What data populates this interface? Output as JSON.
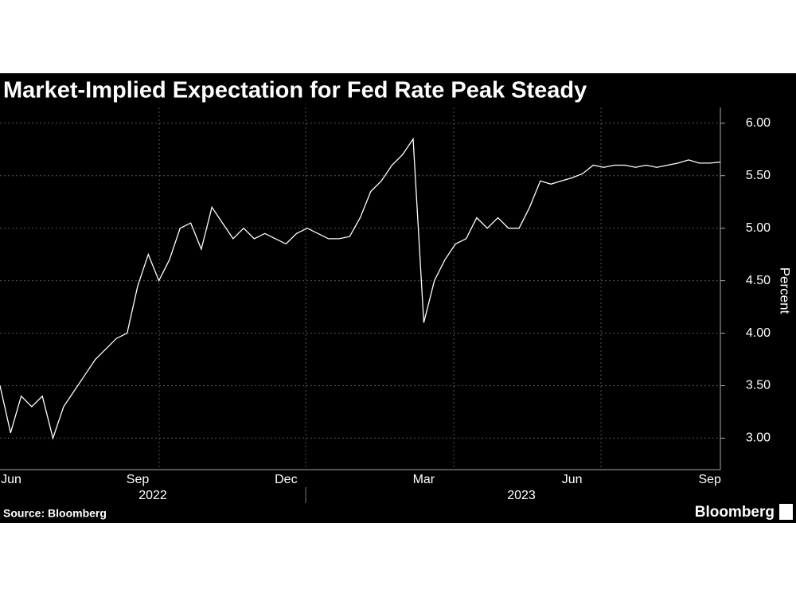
{
  "chart_data": {
    "type": "line",
    "title": "Market-Implied Expectation for Fed Rate Peak Steady",
    "y_label": "Percent",
    "source": "Source: Bloomberg",
    "brand": "Bloomberg",
    "years": [
      "2022",
      "2023"
    ],
    "categories": [
      null,
      "Jun",
      null,
      null,
      null,
      null,
      null,
      null,
      null,
      null,
      null,
      null,
      null,
      "Sep",
      null,
      null,
      null,
      null,
      null,
      null,
      null,
      null,
      null,
      null,
      null,
      null,
      null,
      "Dec",
      null,
      null,
      null,
      null,
      null,
      null,
      null,
      null,
      null,
      null,
      null,
      null,
      "Mar",
      null,
      null,
      null,
      null,
      null,
      null,
      null,
      null,
      null,
      null,
      null,
      null,
      null,
      "Jun",
      null,
      null,
      null,
      null,
      null,
      null,
      null,
      null,
      null,
      null,
      null,
      null,
      "Sep",
      null
    ],
    "series": [
      {
        "name": "Fed rate peak",
        "color": "#ffffff",
        "values": [
          3.5,
          3.05,
          3.4,
          3.3,
          3.4,
          3.0,
          3.3,
          3.45,
          3.6,
          3.75,
          3.85,
          3.95,
          4.0,
          4.45,
          4.75,
          4.5,
          4.7,
          5.0,
          5.05,
          4.8,
          5.2,
          5.05,
          4.9,
          5.0,
          4.9,
          4.95,
          4.9,
          4.85,
          4.95,
          5.0,
          4.95,
          4.9,
          4.9,
          4.92,
          5.1,
          5.35,
          5.45,
          5.6,
          5.7,
          5.85,
          4.1,
          4.5,
          4.7,
          4.85,
          4.9,
          5.1,
          5.0,
          5.1,
          5.0,
          5.0,
          5.2,
          5.45,
          5.42,
          5.45,
          5.48,
          5.52,
          5.6,
          5.58,
          5.6,
          5.6,
          5.58,
          5.6,
          5.58,
          5.6,
          5.62,
          5.65,
          5.62,
          5.62,
          5.63
        ]
      }
    ],
    "ylim": [
      2.7,
      6.15
    ],
    "yticks": [
      {
        "value": 3,
        "label": "3.00"
      },
      {
        "value": 3.5,
        "label": "3.50"
      },
      {
        "value": 4,
        "label": "4.00"
      },
      {
        "value": 4.5,
        "label": "4.50"
      },
      {
        "value": 5,
        "label": "5.00"
      },
      {
        "value": 5.5,
        "label": "5.50"
      },
      {
        "value": 6,
        "label": "6.00"
      }
    ],
    "grid": true
  }
}
